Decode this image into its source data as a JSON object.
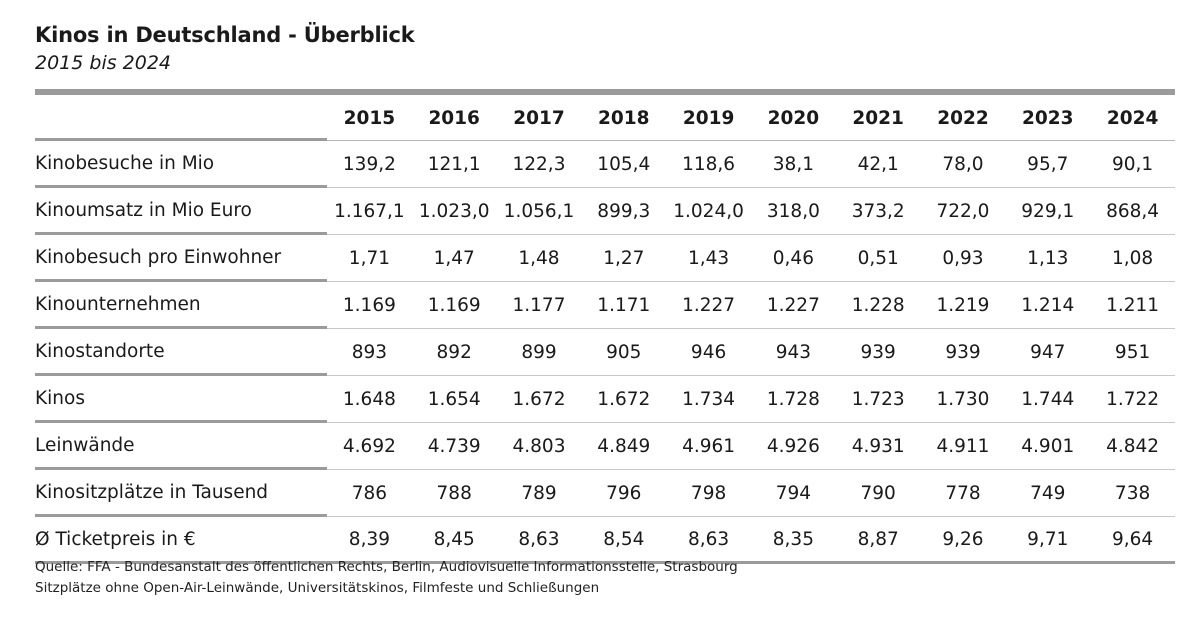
{
  "header": {
    "title": "Kinos in Deutschland - Überblick",
    "subtitle": "2015 bis 2024"
  },
  "chart_data": {
    "type": "table",
    "title": "Kinos in Deutschland - Überblick",
    "subtitle": "2015 bis 2024",
    "columns": [
      "2015",
      "2016",
      "2017",
      "2018",
      "2019",
      "2020",
      "2021",
      "2022",
      "2023",
      "2024"
    ],
    "rows": [
      {
        "label": "Kinobesuche in Mio",
        "values": [
          "139,2",
          "121,1",
          "122,3",
          "105,4",
          "118,6",
          "38,1",
          "42,1",
          "78,0",
          "95,7",
          "90,1"
        ]
      },
      {
        "label": "Kinoumsatz in Mio Euro",
        "values": [
          "1.167,1",
          "1.023,0",
          "1.056,1",
          "899,3",
          "1.024,0",
          "318,0",
          "373,2",
          "722,0",
          "929,1",
          "868,4"
        ]
      },
      {
        "label": "Kinobesuch pro Einwohner",
        "values": [
          "1,71",
          "1,47",
          "1,48",
          "1,27",
          "1,43",
          "0,46",
          "0,51",
          "0,93",
          "1,13",
          "1,08"
        ]
      },
      {
        "label": "Kinounternehmen",
        "values": [
          "1.169",
          "1.169",
          "1.177",
          "1.171",
          "1.227",
          "1.227",
          "1.228",
          "1.219",
          "1.214",
          "1.211"
        ]
      },
      {
        "label": "Kinostandorte",
        "values": [
          "893",
          "892",
          "899",
          "905",
          "946",
          "943",
          "939",
          "939",
          "947",
          "951"
        ]
      },
      {
        "label": "Kinos",
        "values": [
          "1.648",
          "1.654",
          "1.672",
          "1.672",
          "1.734",
          "1.728",
          "1.723",
          "1.730",
          "1.744",
          "1.722"
        ]
      },
      {
        "label": "Leinwände",
        "values": [
          "4.692",
          "4.739",
          "4.803",
          "4.849",
          "4.961",
          "4.926",
          "4.931",
          "4.911",
          "4.901",
          "4.842"
        ]
      },
      {
        "label": "Kinositzplätze in Tausend",
        "values": [
          "786",
          "788",
          "789",
          "796",
          "798",
          "794",
          "790",
          "778",
          "749",
          "738"
        ]
      },
      {
        "label": "Ø Ticketpreis in €",
        "values": [
          "8,39",
          "8,45",
          "8,63",
          "8,54",
          "8,63",
          "8,35",
          "8,87",
          "9,26",
          "9,71",
          "9,64"
        ]
      }
    ]
  },
  "footer": {
    "source": "Quelle: FFA - Bundesanstalt des öffentlichen Rechts, Berlin, Audiovisuelle Informationsstelle, Strasbourg",
    "note": "Sitzplätze ohne Open-Air-Leinwände, Universitätskinos, Filmfeste und Schließungen"
  },
  "colors": {
    "rule_dark": "#9b9b9b",
    "rule_light": "#c8c8c8",
    "text": "#1a1a1a"
  }
}
